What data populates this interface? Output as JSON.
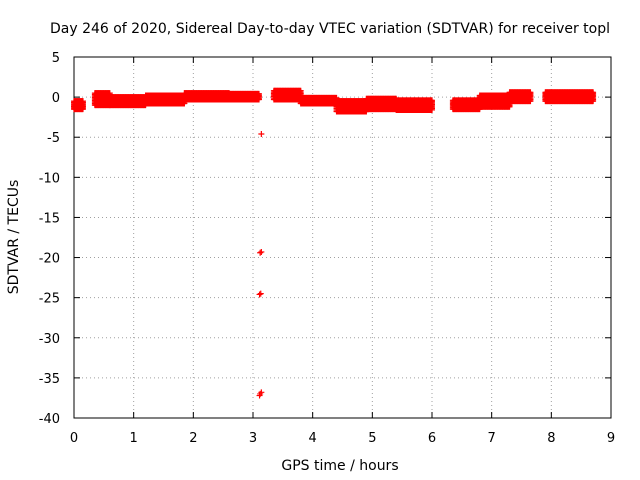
{
  "chart_data": {
    "type": "scatter",
    "title": "Day 246 of 2020, Sidereal Day-to-day VTEC variation (SDTVAR) for receiver topl",
    "xlabel": "GPS time / hours",
    "ylabel": "SDTVAR / TECUs",
    "xlim": [
      0,
      9
    ],
    "ylim": [
      -40,
      5
    ],
    "x_ticks": [
      "0",
      "1",
      "2",
      "3",
      "4",
      "5",
      "6",
      "7",
      "8",
      "9"
    ],
    "y_ticks": [
      "5",
      "0",
      "-5",
      "-10",
      "-15",
      "-20",
      "-25",
      "-30",
      "-35",
      "-40"
    ],
    "grid": true,
    "marker": "plus",
    "color": "#ff0000",
    "series": [
      {
        "bands": [
          {
            "x": [
              0.0,
              0.15
            ],
            "y": [
              -1.5,
              -0.5
            ]
          },
          {
            "x": [
              0.35,
              0.6
            ],
            "y": [
              -1.0,
              0.5
            ]
          },
          {
            "x": [
              0.6,
              1.2
            ],
            "y": [
              -1.0,
              0.0
            ]
          },
          {
            "x": [
              1.2,
              1.85
            ],
            "y": [
              -0.8,
              0.2
            ]
          },
          {
            "x": [
              1.85,
              2.6
            ],
            "y": [
              -0.3,
              0.5
            ]
          },
          {
            "x": [
              2.6,
              3.1
            ],
            "y": [
              -0.3,
              0.4
            ]
          },
          {
            "x": [
              3.35,
              3.8
            ],
            "y": [
              -0.3,
              0.8
            ]
          },
          {
            "x": [
              3.8,
              4.4
            ],
            "y": [
              -0.8,
              -0.1
            ]
          },
          {
            "x": [
              4.4,
              4.9
            ],
            "y": [
              -1.8,
              -0.5
            ]
          },
          {
            "x": [
              4.9,
              5.4
            ],
            "y": [
              -1.5,
              -0.2
            ]
          },
          {
            "x": [
              5.4,
              6.0
            ],
            "y": [
              -1.6,
              -0.4
            ]
          },
          {
            "x": [
              6.35,
              6.8
            ],
            "y": [
              -1.5,
              -0.4
            ]
          },
          {
            "x": [
              6.8,
              7.3
            ],
            "y": [
              -1.2,
              0.2
            ]
          },
          {
            "x": [
              7.3,
              7.65
            ],
            "y": [
              -0.5,
              0.6
            ]
          },
          {
            "x": [
              7.9,
              8.7
            ],
            "y": [
              -0.5,
              0.6
            ]
          }
        ],
        "points": [
          {
            "x": 3.14,
            "y": -4.6
          },
          {
            "x": 3.12,
            "y": -19.4
          },
          {
            "x": 3.14,
            "y": -19.3
          },
          {
            "x": 3.11,
            "y": -24.6
          },
          {
            "x": 3.13,
            "y": -24.5
          },
          {
            "x": 3.14,
            "y": -36.8
          },
          {
            "x": 3.11,
            "y": -37.2
          },
          {
            "x": 3.12,
            "y": -37.0
          }
        ]
      }
    ]
  }
}
